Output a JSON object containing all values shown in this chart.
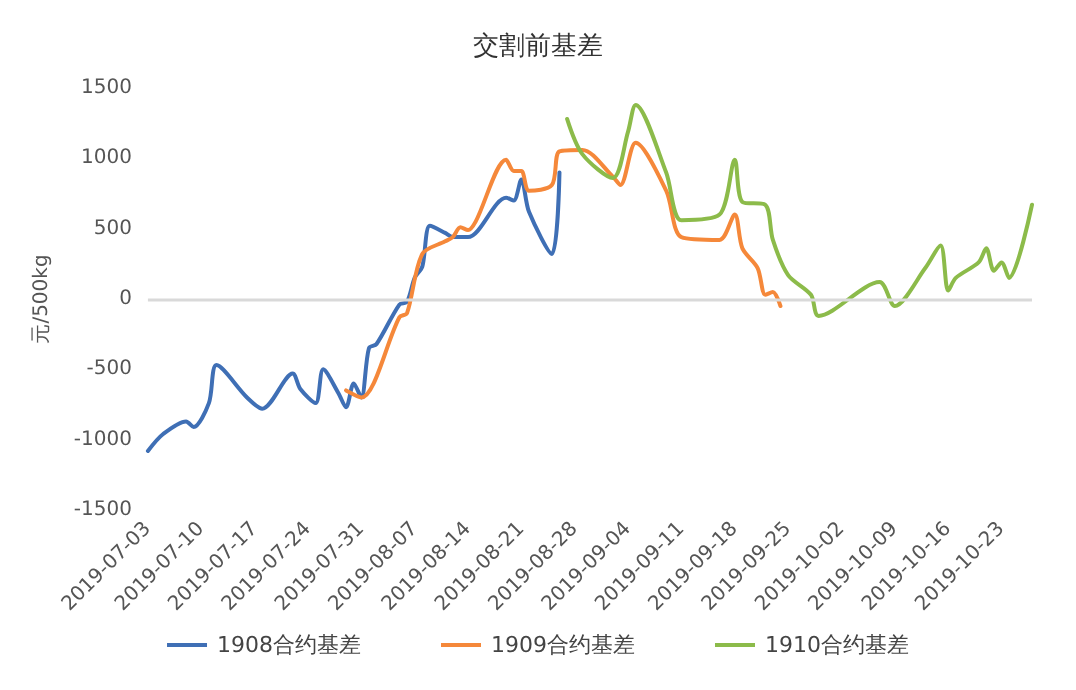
{
  "chart_data": {
    "type": "line",
    "title": "交割前基差",
    "ylabel": "元/500kg",
    "series": [
      {
        "name": "1908合约基差",
        "color": "#3f6fb5",
        "x": [
          "2019-07-03",
          "2019-07-05",
          "2019-07-08",
          "2019-07-09",
          "2019-07-11",
          "2019-07-12",
          "2019-07-16",
          "2019-07-18",
          "2019-07-22",
          "2019-07-23",
          "2019-07-25",
          "2019-07-26",
          "2019-07-28",
          "2019-07-29",
          "2019-07-30",
          "2019-07-31",
          "2019-08-01",
          "2019-08-02",
          "2019-08-05",
          "2019-08-06",
          "2019-08-07",
          "2019-08-08",
          "2019-08-09",
          "2019-08-11",
          "2019-08-12",
          "2019-08-14",
          "2019-08-19",
          "2019-08-20",
          "2019-08-21",
          "2019-08-22",
          "2019-08-25",
          "2019-08-26"
        ],
        "values": [
          -1080,
          -960,
          -870,
          -910,
          -740,
          -470,
          -700,
          -780,
          -530,
          -640,
          -740,
          -500,
          -670,
          -770,
          -600,
          -700,
          -350,
          -320,
          -40,
          -20,
          150,
          230,
          520,
          470,
          440,
          440,
          720,
          700,
          850,
          620,
          320,
          900
        ]
      },
      {
        "name": "1909合约基差",
        "color": "#f5883a",
        "x": [
          "2019-07-29",
          "2019-07-31",
          "2019-08-05",
          "2019-08-06",
          "2019-08-08",
          "2019-08-11",
          "2019-08-12",
          "2019-08-13",
          "2019-08-14",
          "2019-08-15",
          "2019-08-19",
          "2019-08-20",
          "2019-08-21",
          "2019-08-22",
          "2019-08-25",
          "2019-08-26",
          "2019-08-29",
          "2019-09-02",
          "2019-09-03",
          "2019-09-05",
          "2019-09-09",
          "2019-09-11",
          "2019-09-16",
          "2019-09-18",
          "2019-09-19",
          "2019-09-21",
          "2019-09-22",
          "2019-09-23",
          "2019-09-24"
        ],
        "values": [
          -650,
          -700,
          -130,
          -100,
          320,
          410,
          440,
          510,
          490,
          550,
          990,
          910,
          910,
          770,
          810,
          1050,
          1060,
          870,
          810,
          1110,
          770,
          440,
          420,
          600,
          360,
          220,
          30,
          50,
          -50
        ]
      },
      {
        "name": "1910合约基差",
        "color": "#8cbb4a",
        "x": [
          "2019-08-27",
          "2019-08-29",
          "2019-09-02",
          "2019-09-04",
          "2019-09-05",
          "2019-09-09",
          "2019-09-11",
          "2019-09-16",
          "2019-09-18",
          "2019-09-19",
          "2019-09-22",
          "2019-09-23",
          "2019-09-25",
          "2019-09-28",
          "2019-09-29",
          "2019-10-07",
          "2019-10-09",
          "2019-10-13",
          "2019-10-15",
          "2019-10-16",
          "2019-10-17",
          "2019-10-20",
          "2019-10-21",
          "2019-10-22",
          "2019-10-23",
          "2019-10-24",
          "2019-10-27"
        ],
        "values": [
          1280,
          1030,
          860,
          1190,
          1380,
          900,
          560,
          600,
          990,
          690,
          670,
          420,
          170,
          30,
          -120,
          120,
          -50,
          220,
          380,
          60,
          150,
          260,
          360,
          200,
          260,
          150,
          670
        ]
      }
    ],
    "xlim": [
      "2019-07-03",
      "2019-10-27"
    ],
    "xticks": [
      "2019-07-03",
      "2019-07-10",
      "2019-07-17",
      "2019-07-24",
      "2019-07-31",
      "2019-08-07",
      "2019-08-14",
      "2019-08-21",
      "2019-08-28",
      "2019-09-04",
      "2019-09-11",
      "2019-09-18",
      "2019-09-25",
      "2019-10-02",
      "2019-10-09",
      "2019-10-16",
      "2019-10-23"
    ],
    "ylim": [
      -1500,
      1500
    ],
    "yticks": [
      -1500,
      -1000,
      -500,
      0,
      500,
      1000,
      1500
    ],
    "ref_lines": [
      {
        "axis": "y",
        "value": 0,
        "color": "#d9d9d9"
      }
    ],
    "grid": false,
    "legend": "bottom",
    "marker": "none",
    "line_style": "solid"
  }
}
